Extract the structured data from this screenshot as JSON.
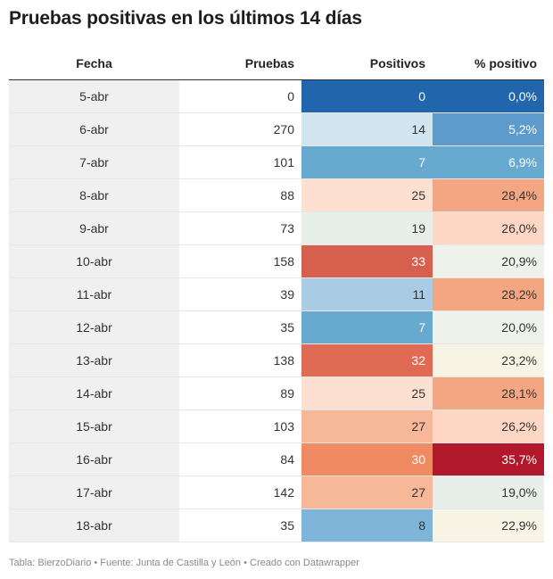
{
  "title": "Pruebas positivas en los últimos 14 días",
  "footer": "Tabla: BierzoDiario • Fuente: Junta de Castilla y León • Creado con Datawrapper",
  "chart_data": {
    "type": "table",
    "title": "Pruebas positivas en los últimos 14 días",
    "columns": [
      "Fecha",
      "Pruebas",
      "Positivos",
      "% positivo"
    ],
    "rows": [
      {
        "fecha": "5-abr",
        "pruebas": "0",
        "positivos": "0",
        "pct": "0,0%",
        "positivos_value": 0,
        "pct_value": 0.0
      },
      {
        "fecha": "6-abr",
        "pruebas": "270",
        "positivos": "14",
        "pct": "5,2%",
        "positivos_value": 14,
        "pct_value": 5.2
      },
      {
        "fecha": "7-abr",
        "pruebas": "101",
        "positivos": "7",
        "pct": "6,9%",
        "positivos_value": 7,
        "pct_value": 6.9
      },
      {
        "fecha": "8-abr",
        "pruebas": "88",
        "positivos": "25",
        "pct": "28,4%",
        "positivos_value": 25,
        "pct_value": 28.4
      },
      {
        "fecha": "9-abr",
        "pruebas": "73",
        "positivos": "19",
        "pct": "26,0%",
        "positivos_value": 19,
        "pct_value": 26.0
      },
      {
        "fecha": "10-abr",
        "pruebas": "158",
        "positivos": "33",
        "pct": "20,9%",
        "positivos_value": 33,
        "pct_value": 20.9
      },
      {
        "fecha": "11-abr",
        "pruebas": "39",
        "positivos": "11",
        "pct": "28,2%",
        "positivos_value": 11,
        "pct_value": 28.2
      },
      {
        "fecha": "12-abr",
        "pruebas": "35",
        "positivos": "7",
        "pct": "20,0%",
        "positivos_value": 7,
        "pct_value": 20.0
      },
      {
        "fecha": "13-abr",
        "pruebas": "138",
        "positivos": "32",
        "pct": "23,2%",
        "positivos_value": 32,
        "pct_value": 23.2
      },
      {
        "fecha": "14-abr",
        "pruebas": "89",
        "positivos": "25",
        "pct": "28,1%",
        "positivos_value": 25,
        "pct_value": 28.1
      },
      {
        "fecha": "15-abr",
        "pruebas": "103",
        "positivos": "27",
        "pct": "26,2%",
        "positivos_value": 27,
        "pct_value": 26.2
      },
      {
        "fecha": "16-abr",
        "pruebas": "84",
        "positivos": "30",
        "pct": "35,7%",
        "positivos_value": 30,
        "pct_value": 35.7
      },
      {
        "fecha": "17-abr",
        "pruebas": "142",
        "positivos": "27",
        "pct": "19,0%",
        "positivos_value": 27,
        "pct_value": 19.0
      },
      {
        "fecha": "18-abr",
        "pruebas": "35",
        "positivos": "8",
        "pct": "22,9%",
        "positivos_value": 8,
        "pct_value": 22.9
      }
    ],
    "positivos_colors": [
      "#2166ac",
      "#d1e5f0",
      "#67a9cf",
      "#fde0d2",
      "#e8eeea",
      "#d6604d",
      "#a9cce4",
      "#67a9cf",
      "#e06b55",
      "#fde0d2",
      "#f7b799",
      "#ef8a62",
      "#f7b799",
      "#7fb5d9"
    ],
    "pct_colors": [
      "#2166ac",
      "#5d9bcd",
      "#67a9cf",
      "#f4a582",
      "#fdd7c4",
      "#eef2ea",
      "#f4a582",
      "#eef2ea",
      "#f7f4e6",
      "#f4a582",
      "#fdd7c4",
      "#b2182b",
      "#e8eeea",
      "#f7f4e6"
    ],
    "positivos_text_colors": [
      "#ffffff",
      "#333333",
      "#ffffff",
      "#333333",
      "#333333",
      "#ffffff",
      "#333333",
      "#ffffff",
      "#ffffff",
      "#333333",
      "#333333",
      "#ffffff",
      "#333333",
      "#333333"
    ],
    "pct_text_colors": [
      "#ffffff",
      "#ffffff",
      "#ffffff",
      "#333333",
      "#333333",
      "#333333",
      "#333333",
      "#333333",
      "#333333",
      "#333333",
      "#333333",
      "#ffffff",
      "#333333",
      "#333333"
    ]
  }
}
